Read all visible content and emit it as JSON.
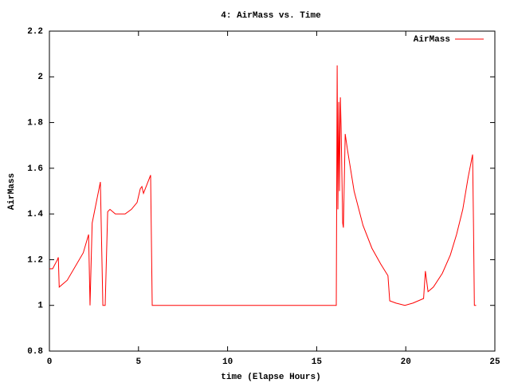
{
  "chart_data": {
    "type": "line",
    "title": "4: AirMass vs. Time",
    "x_label": "time (Elapse Hours)",
    "y_label": "AirMass",
    "xlim": [
      0,
      25
    ],
    "xticks": [
      0,
      5,
      10,
      15,
      20,
      25
    ],
    "ylim": [
      0.8,
      2.2
    ],
    "yticks": [
      0.8,
      1,
      1.2,
      1.4,
      1.6,
      1.8,
      2,
      2.2
    ],
    "legend": "top-right",
    "series": [
      {
        "name": "AirMass",
        "color": "#ff0000",
        "x": [
          0,
          0.18,
          0.45,
          0.5,
          0.55,
          1.0,
          1.9,
          2.2,
          2.28,
          2.4,
          2.86,
          3.0,
          3.13,
          3.27,
          3.4,
          3.7,
          4.25,
          4.6,
          4.92,
          5.1,
          5.19,
          5.28,
          5.68,
          5.77,
          16.1,
          16.15,
          16.19,
          16.24,
          16.28,
          16.33,
          16.37,
          16.46,
          16.5,
          16.6,
          16.73,
          17.1,
          17.6,
          18.1,
          18.6,
          19.0,
          19.1,
          19.45,
          19.95,
          20.4,
          21.0,
          21.1,
          21.25,
          21.55,
          22.05,
          22.5,
          22.85,
          23.2,
          23.5,
          23.75,
          23.8,
          23.85,
          23.95
        ],
        "values": [
          1.16,
          1.16,
          1.2,
          1.21,
          1.08,
          1.11,
          1.23,
          1.31,
          1.0,
          1.36,
          1.54,
          1.0,
          1.0,
          1.41,
          1.42,
          1.4,
          1.4,
          1.42,
          1.45,
          1.51,
          1.52,
          1.49,
          1.57,
          1.0,
          1.0,
          2.05,
          1.42,
          1.89,
          1.5,
          1.91,
          1.78,
          1.36,
          1.34,
          1.75,
          1.68,
          1.5,
          1.35,
          1.25,
          1.18,
          1.13,
          1.02,
          1.01,
          1.0,
          1.01,
          1.03,
          1.15,
          1.06,
          1.08,
          1.14,
          1.22,
          1.31,
          1.42,
          1.56,
          1.66,
          1.36,
          1.0,
          1.0
        ]
      }
    ]
  }
}
